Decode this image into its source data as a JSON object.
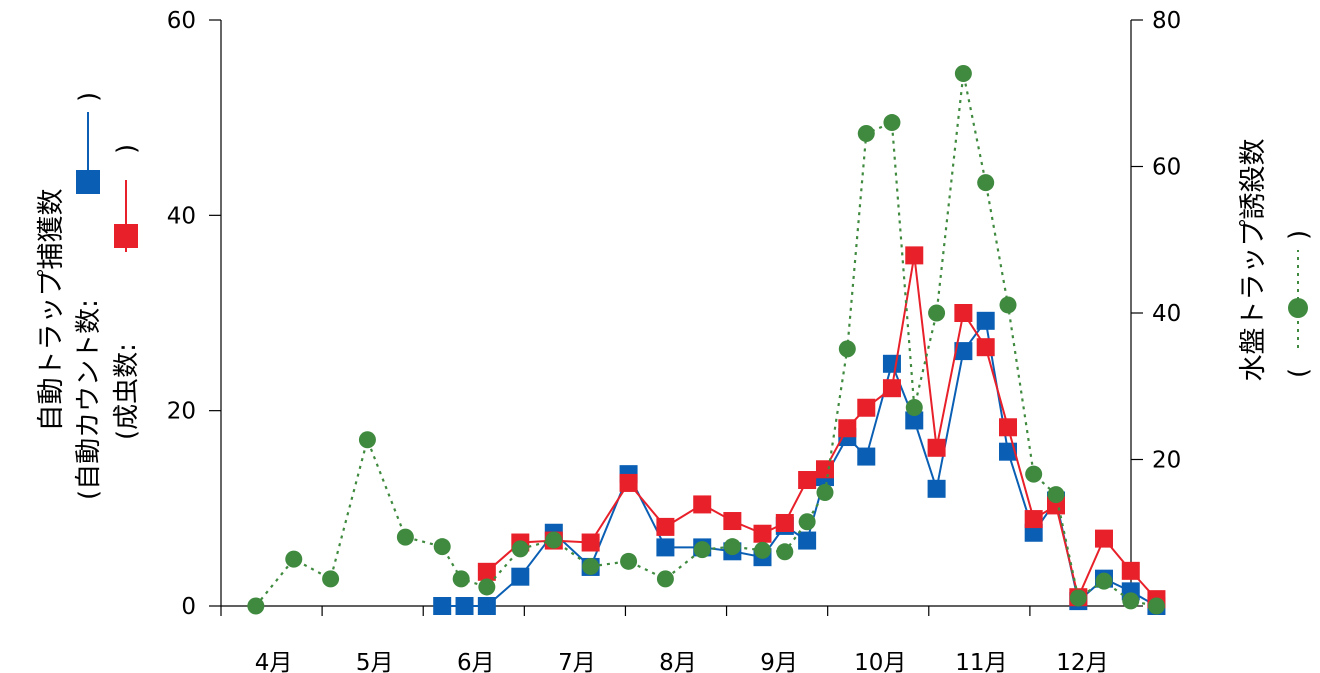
{
  "chart_data": {
    "type": "line",
    "x_categories": [
      "4月",
      "5月",
      "6月",
      "7月",
      "8月",
      "9月",
      "10月",
      "11月",
      "12月"
    ],
    "left_axis": {
      "title": "自動トラップ捕獲数",
      "ylim": [
        0,
        60
      ],
      "ticks": [
        "0",
        "20",
        "40",
        "60"
      ]
    },
    "right_axis": {
      "title": "水盤トラップ誘殺数",
      "ylim": [
        0,
        80
      ],
      "ticks": [
        "0",
        "20",
        "40",
        "60",
        "80"
      ]
    },
    "legend_text": {
      "auto_open": "(自動カウント数:",
      "auto_close": ")",
      "adult_open": "(成虫数:",
      "adult_close": ")",
      "water_open": "(",
      "water_close": ")"
    },
    "series": [
      {
        "key": "auto",
        "axis": "left",
        "color": "#0a5fb4",
        "marker": "square",
        "line": "solid",
        "points": [
          [
            6.0,
            0
          ],
          [
            6.2,
            0
          ],
          [
            6.4,
            0
          ],
          [
            6.7,
            3
          ],
          [
            7.0,
            7.5
          ],
          [
            7.33,
            4
          ],
          [
            7.67,
            13.5
          ],
          [
            8.0,
            6
          ],
          [
            8.33,
            6
          ],
          [
            8.6,
            5.6
          ],
          [
            8.87,
            5
          ],
          [
            9.07,
            8.2
          ],
          [
            9.27,
            6.7
          ],
          [
            9.43,
            13.2
          ],
          [
            9.63,
            17.3
          ],
          [
            9.8,
            15.3
          ],
          [
            10.03,
            24.8
          ],
          [
            10.23,
            19
          ],
          [
            10.43,
            12
          ],
          [
            10.67,
            26.1
          ],
          [
            10.87,
            29.2
          ],
          [
            11.07,
            15.8
          ],
          [
            11.3,
            7.5
          ],
          [
            11.5,
            10.8
          ],
          [
            11.7,
            0.5
          ],
          [
            11.93,
            2.8
          ],
          [
            12.17,
            1.5
          ],
          [
            12.4,
            0
          ]
        ]
      },
      {
        "key": "adult",
        "axis": "left",
        "color": "#e8202a",
        "marker": "square",
        "line": "solid",
        "points": [
          [
            6.4,
            3.5
          ],
          [
            6.7,
            6.5
          ],
          [
            7.0,
            6.7
          ],
          [
            7.33,
            6.5
          ],
          [
            7.67,
            12.6
          ],
          [
            8.0,
            8.1
          ],
          [
            8.33,
            10.4
          ],
          [
            8.6,
            8.7
          ],
          [
            8.87,
            7.4
          ],
          [
            9.07,
            8.5
          ],
          [
            9.27,
            12.9
          ],
          [
            9.43,
            14
          ],
          [
            9.63,
            18.2
          ],
          [
            9.8,
            20.3
          ],
          [
            10.03,
            22.3
          ],
          [
            10.23,
            35.9
          ],
          [
            10.43,
            16.2
          ],
          [
            10.67,
            30
          ],
          [
            10.87,
            26.5
          ],
          [
            11.07,
            18.3
          ],
          [
            11.3,
            8.9
          ],
          [
            11.5,
            10.3
          ],
          [
            11.7,
            0.9
          ],
          [
            11.93,
            6.9
          ],
          [
            12.17,
            3.6
          ],
          [
            12.4,
            0.7
          ]
        ]
      },
      {
        "key": "water",
        "axis": "right",
        "color": "#3f8a3f",
        "marker": "circle",
        "line": "dotted",
        "points": [
          [
            4.33,
            0
          ],
          [
            4.67,
            6.4
          ],
          [
            5.0,
            3.7
          ],
          [
            5.33,
            22.7
          ],
          [
            5.67,
            9.4
          ],
          [
            6.0,
            8.1
          ],
          [
            6.17,
            3.7
          ],
          [
            6.4,
            2.6
          ],
          [
            6.7,
            7.8
          ],
          [
            7.0,
            9
          ],
          [
            7.33,
            5.4
          ],
          [
            7.67,
            6.1
          ],
          [
            8.0,
            3.7
          ],
          [
            8.33,
            7.7
          ],
          [
            8.6,
            8.1
          ],
          [
            8.87,
            7.6
          ],
          [
            9.07,
            7.4
          ],
          [
            9.27,
            11.5
          ],
          [
            9.43,
            15.5
          ],
          [
            9.63,
            35.1
          ],
          [
            9.8,
            64.5
          ],
          [
            10.03,
            66
          ],
          [
            10.23,
            27.1
          ],
          [
            10.43,
            40
          ],
          [
            10.67,
            72.7
          ],
          [
            10.87,
            57.8
          ],
          [
            11.07,
            41.1
          ],
          [
            11.3,
            18
          ],
          [
            11.5,
            15.2
          ],
          [
            11.7,
            1.1
          ],
          [
            11.93,
            3.4
          ],
          [
            12.17,
            0.7
          ],
          [
            12.4,
            0
          ]
        ]
      }
    ]
  }
}
